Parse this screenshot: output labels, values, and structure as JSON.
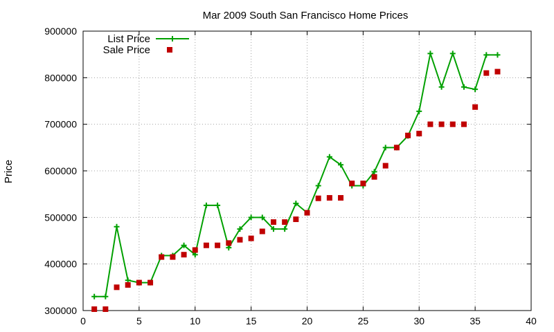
{
  "chart_data": {
    "type": "line",
    "title": "Mar 2009 South San Francisco Home Prices",
    "xlabel": "",
    "ylabel": "Price",
    "xlim": [
      0,
      40
    ],
    "ylim": [
      300000,
      900000
    ],
    "x_ticks": [
      0,
      5,
      10,
      15,
      20,
      25,
      30,
      35,
      40
    ],
    "y_ticks": [
      300000,
      400000,
      500000,
      600000,
      700000,
      800000,
      900000
    ],
    "grid": true,
    "legend_position": "top-left",
    "series": [
      {
        "name": "List Price",
        "style": "line-with-plus-markers",
        "color": "#00a000",
        "x": [
          1,
          2,
          3,
          4,
          5,
          6,
          7,
          8,
          9,
          10,
          11,
          12,
          13,
          14,
          15,
          16,
          17,
          18,
          19,
          20,
          21,
          22,
          23,
          24,
          25,
          26,
          27,
          28,
          29,
          30,
          31,
          32,
          33,
          34,
          35,
          36,
          37
        ],
        "values": [
          330000,
          330000,
          480000,
          365000,
          360000,
          360000,
          418000,
          418000,
          440000,
          420000,
          526000,
          526000,
          435000,
          475000,
          500000,
          500000,
          475000,
          475000,
          530000,
          510000,
          568000,
          630000,
          613000,
          568000,
          568000,
          598000,
          650000,
          650000,
          675000,
          728000,
          852000,
          780000,
          852000,
          780000,
          775000,
          849000,
          849000
        ]
      },
      {
        "name": "Sale Price",
        "style": "square-markers",
        "color": "#c00000",
        "x": [
          1,
          2,
          3,
          4,
          5,
          6,
          7,
          8,
          9,
          10,
          11,
          12,
          13,
          14,
          15,
          16,
          17,
          18,
          19,
          20,
          21,
          22,
          23,
          24,
          25,
          26,
          27,
          28,
          29,
          30,
          31,
          32,
          33,
          34,
          35,
          36,
          37
        ],
        "values": [
          303000,
          303000,
          350000,
          355000,
          360000,
          360000,
          415000,
          415000,
          420000,
          430000,
          440000,
          440000,
          445000,
          452000,
          455000,
          470000,
          490000,
          490000,
          496000,
          510000,
          541000,
          542000,
          542000,
          573000,
          573000,
          587000,
          611000,
          650000,
          676000,
          680000,
          700000,
          700000,
          700000,
          700000,
          737000,
          810000,
          813000
        ]
      }
    ]
  }
}
